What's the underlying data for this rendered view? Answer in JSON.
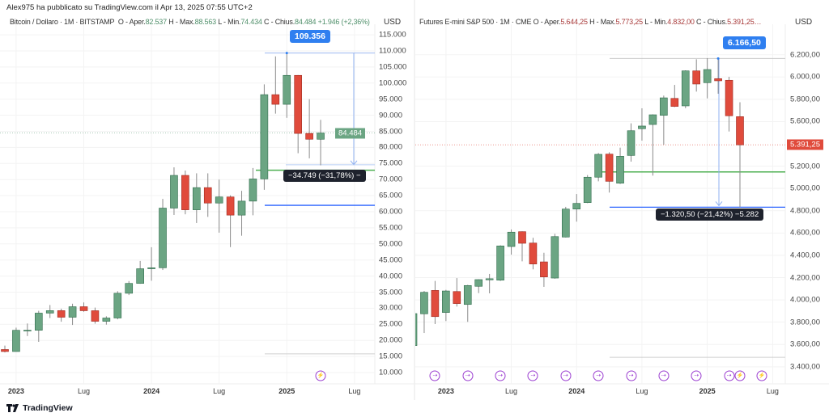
{
  "header": {
    "published": "Alex975 ha pubblicato su TradingView.com il Apr 13, 2025 07:55 UTC+2"
  },
  "footer": {
    "brand": "TradingView"
  },
  "colors": {
    "up": "#6ba583",
    "down": "#e04b3c",
    "accent": "#2f7ff0",
    "event": "#9b3fd0"
  },
  "left": {
    "symbol": "Bitcoin / Dollaro · 1M · BITSTAMP",
    "o_label": "O - Aper.",
    "o": "82.537",
    "h_label": "H - Max.",
    "h": "88.563",
    "l_label": "L - Min.",
    "l": "74.434",
    "c_label": "C - Chius.",
    "c": "84.484",
    "change": "+1.946 (+2,36%)",
    "currency": "USD",
    "last_price_tag": "84.484",
    "high_callout": "109.356",
    "measure_label": "−34.749 (−31,78%) −"
  },
  "right": {
    "symbol": "Futures E-mini S&P 500 · 1M · CME",
    "o_label": "O - Aper.",
    "o": "5.644,25",
    "h_label": "H - Max.",
    "h": "5.773,25",
    "l_label": "L - Min.",
    "l": "4.832,00",
    "c_label": "C - Chius.",
    "c": "5.391,25…",
    "currency": "USD",
    "last_price_tag": "5.391,25",
    "high_callout": "6.166,50",
    "measure_label": "−1.320,50 (−21,42%) −5.282"
  },
  "chart_data": [
    {
      "type": "candlestick",
      "title": "Bitcoin / Dollaro · 1M · BITSTAMP",
      "ylabel": "USD",
      "ylim": [
        8000,
        116000
      ],
      "yticks": [
        {
          "v": 10000,
          "t": "10.000"
        },
        {
          "v": 15000,
          "t": "15.000"
        },
        {
          "v": 20000,
          "t": "20.000"
        },
        {
          "v": 25000,
          "t": "25.000"
        },
        {
          "v": 30000,
          "t": "30.000"
        },
        {
          "v": 35000,
          "t": "35.000"
        },
        {
          "v": 40000,
          "t": "40.000"
        },
        {
          "v": 45000,
          "t": "45.000"
        },
        {
          "v": 50000,
          "t": "50.000"
        },
        {
          "v": 55000,
          "t": "55.000"
        },
        {
          "v": 60000,
          "t": "60.000"
        },
        {
          "v": 65000,
          "t": "65.000"
        },
        {
          "v": 70000,
          "t": "70.000"
        },
        {
          "v": 75000,
          "t": "75.000"
        },
        {
          "v": 80000,
          "t": "80.000"
        },
        {
          "v": 85000,
          "t": "85.000"
        },
        {
          "v": 90000,
          "t": "90.000"
        },
        {
          "v": 95000,
          "t": "95.000"
        },
        {
          "v": 100000,
          "t": "100.000"
        },
        {
          "v": 105000,
          "t": "105.000"
        },
        {
          "v": 110000,
          "t": "110.000"
        },
        {
          "v": 115000,
          "t": "115.000"
        }
      ],
      "xticks": [
        {
          "i": 1,
          "t": "2023",
          "year": true
        },
        {
          "i": 7,
          "t": "Lug"
        },
        {
          "i": 13,
          "t": "2024",
          "year": true
        },
        {
          "i": 19,
          "t": "Lug"
        },
        {
          "i": 25,
          "t": "2025",
          "year": true
        },
        {
          "i": 31,
          "t": "Lug"
        }
      ],
      "candles": [
        [
          "2022-12",
          17165,
          18400,
          16250,
          16540
        ],
        [
          "2023-01",
          16540,
          23960,
          16500,
          23140
        ],
        [
          "2023-02",
          23140,
          25250,
          21350,
          23150
        ],
        [
          "2023-03",
          23150,
          29200,
          19550,
          28480
        ],
        [
          "2023-04",
          28480,
          31000,
          26950,
          29250
        ],
        [
          "2023-05",
          29250,
          29850,
          25800,
          27200
        ],
        [
          "2023-06",
          27200,
          31400,
          24800,
          30470
        ],
        [
          "2023-07",
          30470,
          31800,
          28900,
          29230
        ],
        [
          "2023-08",
          29230,
          30200,
          25200,
          25940
        ],
        [
          "2023-09",
          25940,
          27500,
          24900,
          26960
        ],
        [
          "2023-10",
          26960,
          35300,
          26550,
          34650
        ],
        [
          "2023-11",
          34650,
          38450,
          34100,
          37720
        ],
        [
          "2023-12",
          37720,
          44700,
          37600,
          42280
        ],
        [
          "2024-01",
          42280,
          48970,
          38550,
          42580
        ],
        [
          "2024-02",
          42580,
          64000,
          41900,
          61130
        ],
        [
          "2024-03",
          61130,
          73800,
          59000,
          71300
        ],
        [
          "2024-04",
          71300,
          72800,
          59200,
          60600
        ],
        [
          "2024-05",
          60600,
          71950,
          56500,
          67500
        ],
        [
          "2024-06",
          67500,
          71950,
          58400,
          62700
        ],
        [
          "2024-07",
          62700,
          70000,
          53500,
          64600
        ],
        [
          "2024-08",
          64600,
          65100,
          49000,
          58950
        ],
        [
          "2024-09",
          58950,
          66500,
          52550,
          63300
        ],
        [
          "2024-10",
          63300,
          73600,
          58900,
          70200
        ],
        [
          "2024-11",
          70200,
          99600,
          66800,
          96400
        ],
        [
          "2024-12",
          96400,
          108300,
          90500,
          93400
        ],
        [
          "2025-01",
          93400,
          109356,
          89200,
          102400
        ],
        [
          "2025-02",
          102400,
          102500,
          78200,
          84350
        ],
        [
          "2025-03",
          84350,
          95000,
          76600,
          82540
        ],
        [
          "2025-04",
          82537,
          88563,
          74434,
          84484
        ]
      ],
      "last_price": 84484,
      "annotations": {
        "high": 109356,
        "high_index": 25,
        "measure_to": 74607,
        "green_line": 72900,
        "blue_line": 62000,
        "gray_line": 15800
      },
      "events": [
        {
          "i": 28,
          "kind": "lightning",
          "glyph": "⚡"
        }
      ]
    },
    {
      "type": "candlestick",
      "title": "Futures E-mini S&P 500 · 1M · CME",
      "ylabel": "USD",
      "ylim": [
        3300,
        6400
      ],
      "yticks": [
        {
          "v": 3400,
          "t": "3.400,00"
        },
        {
          "v": 3600,
          "t": "3.600,00"
        },
        {
          "v": 3800,
          "t": "3.800,00"
        },
        {
          "v": 4000,
          "t": "4.000,00"
        },
        {
          "v": 4200,
          "t": "4.200,00"
        },
        {
          "v": 4400,
          "t": "4.400,00"
        },
        {
          "v": 4600,
          "t": "4.600,00"
        },
        {
          "v": 4800,
          "t": "4.800,00"
        },
        {
          "v": 5000,
          "t": "5.000,00"
        },
        {
          "v": 5200,
          "t": "5.200,00"
        },
        {
          "v": 5600,
          "t": "5.600,00"
        },
        {
          "v": 5800,
          "t": "5.800,00"
        },
        {
          "v": 6000,
          "t": "6.000,00"
        },
        {
          "v": 6200,
          "t": "6.200,00"
        }
      ],
      "xticks": [
        {
          "i": 3,
          "t": "2023",
          "year": true
        },
        {
          "i": 9,
          "t": "Lug"
        },
        {
          "i": 15,
          "t": "2024",
          "year": true
        },
        {
          "i": 21,
          "t": "Lug"
        },
        {
          "i": 27,
          "t": "2025",
          "year": true
        },
        {
          "i": 33,
          "t": "Lug"
        }
      ],
      "candles": [
        [
          "2022-10",
          3590,
          3877,
          3587,
          3877
        ],
        [
          "2022-11",
          3875,
          4080,
          3703,
          4068
        ],
        [
          "2022-12",
          4085,
          4170,
          3783,
          3850
        ],
        [
          "2023-01",
          3887,
          4090,
          3810,
          4080
        ],
        [
          "2023-02",
          4075,
          4196,
          3940,
          3967
        ],
        [
          "2023-03",
          3959,
          4135,
          3803,
          4129
        ],
        [
          "2023-04",
          4122,
          4185,
          4061,
          4182
        ],
        [
          "2023-05",
          4180,
          4233,
          4059,
          4190
        ],
        [
          "2023-06",
          4177,
          4490,
          4170,
          4484
        ],
        [
          "2023-07",
          4479,
          4632,
          4406,
          4608
        ],
        [
          "2023-08",
          4612,
          4615,
          4346,
          4508
        ],
        [
          "2023-09",
          4510,
          4557,
          4274,
          4322
        ],
        [
          "2023-10",
          4341,
          4423,
          4117,
          4206
        ],
        [
          "2023-11",
          4196,
          4593,
          4190,
          4568
        ],
        [
          "2023-12",
          4564,
          4835,
          4560,
          4815
        ],
        [
          "2024-01",
          4815,
          4950,
          4702,
          4866
        ],
        [
          "2024-02",
          4873,
          5120,
          4868,
          5101
        ],
        [
          "2024-03",
          5101,
          5318,
          5064,
          5306
        ],
        [
          "2024-04",
          5308,
          5325,
          4963,
          5064
        ],
        [
          "2024-05",
          5047,
          5366,
          5040,
          5289
        ],
        [
          "2024-06",
          5296,
          5584,
          5241,
          5518
        ],
        [
          "2024-07",
          5536,
          5719,
          5429,
          5560
        ],
        [
          "2024-08",
          5574,
          5665,
          5115,
          5661
        ],
        [
          "2024-09",
          5656,
          5833,
          5393,
          5813
        ],
        [
          "2024-10",
          5808,
          5929,
          5730,
          5736
        ],
        [
          "2024-11",
          5741,
          6060,
          5720,
          6055
        ],
        [
          "2024-12",
          6055,
          6159,
          5869,
          5937
        ],
        [
          "2025-01",
          5949,
          6169,
          5808,
          6067
        ],
        [
          "2025-02",
          5985,
          6166.5,
          5850,
          5966
        ],
        [
          "2025-03",
          5971,
          6002,
          5511,
          5652
        ],
        [
          "2025-04",
          5644.25,
          5773.25,
          4832,
          5391.25
        ]
      ],
      "last_price": 5391.25,
      "annotations": {
        "high": 6166.5,
        "high_index": 28,
        "measure_to": 4846,
        "green_line": 5148,
        "blue_line": 4832,
        "gray_line": 3485
      },
      "events": [
        {
          "i": 2,
          "kind": "rollover",
          "glyph": "⇢"
        },
        {
          "i": 5,
          "kind": "rollover",
          "glyph": "⇢"
        },
        {
          "i": 8,
          "kind": "rollover",
          "glyph": "⇢"
        },
        {
          "i": 11,
          "kind": "rollover",
          "glyph": "⇢"
        },
        {
          "i": 14,
          "kind": "rollover",
          "glyph": "⇢"
        },
        {
          "i": 17,
          "kind": "rollover",
          "glyph": "⇢"
        },
        {
          "i": 20,
          "kind": "rollover",
          "glyph": "⇢"
        },
        {
          "i": 23,
          "kind": "rollover",
          "glyph": "⇢"
        },
        {
          "i": 26,
          "kind": "rollover",
          "glyph": "⇢"
        },
        {
          "i": 29,
          "kind": "rollover",
          "glyph": "⇢"
        },
        {
          "i": 30,
          "kind": "lightning",
          "glyph": "⚡"
        },
        {
          "i": 32,
          "kind": "lightning",
          "glyph": "⚡"
        }
      ]
    }
  ]
}
